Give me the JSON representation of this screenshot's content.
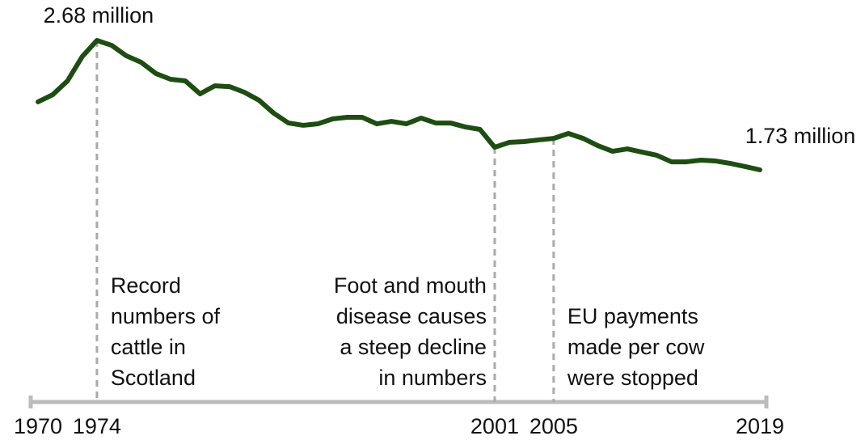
{
  "chart_data": {
    "type": "line",
    "x": [
      1970,
      1971,
      1972,
      1973,
      1974,
      1975,
      1976,
      1977,
      1978,
      1979,
      1980,
      1981,
      1982,
      1983,
      1984,
      1985,
      1986,
      1987,
      1988,
      1989,
      1990,
      1991,
      1992,
      1993,
      1994,
      1995,
      1996,
      1997,
      1998,
      1999,
      2000,
      2001,
      2002,
      2003,
      2004,
      2005,
      2006,
      2007,
      2008,
      2009,
      2010,
      2011,
      2012,
      2013,
      2014,
      2015,
      2016,
      2017,
      2018,
      2019
    ],
    "series": [
      {
        "color": "#1e4d12",
        "values": [
          2.229,
          2.282,
          2.383,
          2.561,
          2.68,
          2.644,
          2.567,
          2.52,
          2.437,
          2.395,
          2.383,
          2.288,
          2.347,
          2.341,
          2.3,
          2.241,
          2.146,
          2.074,
          2.057,
          2.068,
          2.104,
          2.116,
          2.116,
          2.068,
          2.086,
          2.068,
          2.11,
          2.074,
          2.074,
          2.045,
          2.027,
          1.896,
          1.932,
          1.938,
          1.95,
          1.961,
          1.997,
          1.961,
          1.908,
          1.866,
          1.884,
          1.86,
          1.837,
          1.789,
          1.789,
          1.801,
          1.795,
          1.777,
          1.754,
          1.73
        ],
        "value_labels": [
          null,
          null,
          null,
          null,
          "2.68 million",
          null,
          null,
          null,
          null,
          null,
          null,
          null,
          null,
          null,
          null,
          null,
          null,
          null,
          null,
          null,
          null,
          null,
          null,
          null,
          null,
          null,
          null,
          null,
          null,
          null,
          null,
          null,
          null,
          null,
          null,
          null,
          null,
          null,
          null,
          null,
          null,
          null,
          null,
          null,
          null,
          null,
          null,
          null,
          null,
          "1.73 million"
        ]
      }
    ],
    "xlim": [
      1970,
      2019
    ],
    "xticks": [
      1970,
      1974,
      2001,
      2005,
      2019
    ],
    "annotations": [
      {
        "x": 1974,
        "lines": [
          "Record",
          "numbers of",
          "cattle in",
          "Scotland"
        ]
      },
      {
        "x": 2001,
        "lines": [
          "Foot and mouth",
          "disease causes",
          "a steep decline",
          "in numbers"
        ]
      },
      {
        "x": 2005,
        "lines": [
          "EU payments",
          "made per cow",
          "were stopped"
        ]
      }
    ]
  }
}
